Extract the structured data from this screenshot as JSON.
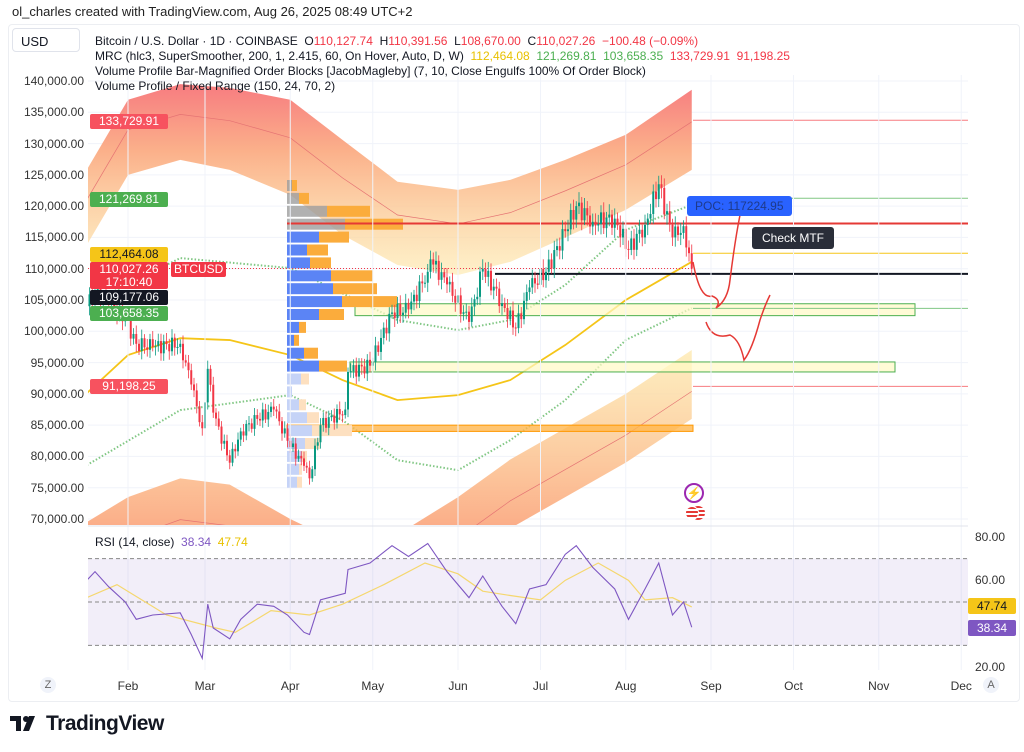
{
  "credit": "ol_charles created with TradingView.com, Aug 26, 2025 08:49 UTC+2",
  "currency": "USD",
  "legend": {
    "symbol": "Bitcoin / U.S. Dollar · 1D · COINBASE",
    "o_label": "O",
    "o": "110,127.74",
    "h_label": "H",
    "h": "110,391.56",
    "l_label": "L",
    "l": "108,670.00",
    "c_label": "C",
    "c": "110,027.26",
    "change": "−100.48 (−0.09%)",
    "mrc": "MRC (hlc3, SuperSmoother, 200, 1, 2.415, 60, On Hover, Auto, D, W)",
    "mrc_values": [
      "112,464.08",
      "121,269.81",
      "103,658.35",
      "133,729.91",
      "91,198.25"
    ],
    "vpob": "Volume Profile Bar-Magnified Order Blocks [JacobMagleby] (7, 10, Close Engulfs 100% Of Order Block)",
    "vpfr": "Volume Profile / Fixed Range (150, 24, 70, 2)",
    "rsi": "RSI (14, close)",
    "rsi_value": "38.34",
    "rsi_ma": "47.74"
  },
  "price_tags": {
    "upper_outer": "133,729.91",
    "upper_inner": "121,269.81",
    "mean": "112,464.08",
    "last": "110,027.26",
    "countdown": "17:10:40",
    "crosshair": "109,177.06",
    "lower_inner": "103,658.35",
    "lower_outer": "91,198.25",
    "symbol_tag": "BTCUSD"
  },
  "annotations": {
    "poc": "POC: 117224.95",
    "note": "Check MTF"
  },
  "rsi_axis": [
    "80.00",
    "60.00",
    "20.00"
  ],
  "rsi_tags": {
    "ma": "47.74",
    "rsi": "38.34"
  },
  "x_axis": [
    "Feb",
    "Mar",
    "Apr",
    "May",
    "Jun",
    "Jul",
    "Aug",
    "Sep",
    "Oct",
    "Nov",
    "Dec"
  ],
  "axis_buttons": {
    "left": "Z",
    "right": "A"
  },
  "brand": "TradingView",
  "colors": {
    "up": "#089981",
    "down": "#f23645",
    "mean": "#f5c518",
    "rsi": "#7e57c2",
    "poc": "#f23645",
    "green": "#4caf50",
    "blue": "#2962ff"
  },
  "chart_data": {
    "type": "candlestick",
    "ylim": [
      70000,
      140000
    ],
    "y_ticks": [
      "140,000.00",
      "135,000.00",
      "130,000.00",
      "125,000.00",
      "120,000.00",
      "115,000.00",
      "110,000.00",
      "105,000.00",
      "100,000.00",
      "95,000.00",
      "90,000.00",
      "85,000.00",
      "80,000.00",
      "75,000.00",
      "70,000.00"
    ],
    "close": [
      [
        "2025-01-17",
        104000
      ],
      [
        "2025-01-20",
        106000
      ],
      [
        "2025-01-25",
        104500
      ],
      [
        "2025-01-31",
        102000
      ],
      [
        "2025-02-04",
        98000
      ],
      [
        "2025-02-10",
        97500
      ],
      [
        "2025-02-20",
        98000
      ],
      [
        "2025-02-24",
        91500
      ],
      [
        "2025-02-28",
        84500
      ],
      [
        "2025-03-02",
        94000
      ],
      [
        "2025-03-04",
        87000
      ],
      [
        "2025-03-10",
        79000
      ],
      [
        "2025-03-14",
        84000
      ],
      [
        "2025-03-20",
        86000
      ],
      [
        "2025-03-26",
        87500
      ],
      [
        "2025-03-31",
        82500
      ],
      [
        "2025-04-06",
        78500
      ],
      [
        "2025-04-08",
        76500
      ],
      [
        "2025-04-12",
        85000
      ],
      [
        "2025-04-21",
        87500
      ],
      [
        "2025-04-22",
        93500
      ],
      [
        "2025-04-30",
        94500
      ],
      [
        "2025-05-08",
        103000
      ],
      [
        "2025-05-14",
        103500
      ],
      [
        "2025-05-21",
        109500
      ],
      [
        "2025-05-22",
        111500
      ],
      [
        "2025-05-28",
        107500
      ],
      [
        "2025-06-05",
        101500
      ],
      [
        "2025-06-10",
        110000
      ],
      [
        "2025-06-17",
        104500
      ],
      [
        "2025-06-22",
        100500
      ],
      [
        "2025-06-27",
        107000
      ],
      [
        "2025-07-03",
        109500
      ],
      [
        "2025-07-10",
        116000
      ],
      [
        "2025-07-14",
        120000
      ],
      [
        "2025-07-20",
        117500
      ],
      [
        "2025-07-28",
        118000
      ],
      [
        "2025-08-02",
        113000
      ],
      [
        "2025-08-08",
        117000
      ],
      [
        "2025-08-13",
        123500
      ],
      [
        "2025-08-18",
        115000
      ],
      [
        "2025-08-22",
        116800
      ],
      [
        "2025-08-25",
        110027.26
      ]
    ],
    "mrc": {
      "dates": [
        "2025-01-17",
        "2025-02-01",
        "2025-02-20",
        "2025-03-10",
        "2025-04-01",
        "2025-04-20",
        "2025-05-10",
        "2025-06-01",
        "2025-06-20",
        "2025-07-10",
        "2025-08-01",
        "2025-08-25"
      ],
      "upper_outer": [
        125800,
        137000,
        139500,
        138900,
        137000,
        130600,
        123900,
        122600,
        124200,
        127400,
        131400,
        138600
      ],
      "upper_inner": [
        113800,
        125000,
        127400,
        125800,
        121800,
        115400,
        110600,
        109000,
        111100,
        115000,
        119400,
        125800
      ],
      "mean": [
        90100,
        96200,
        98900,
        98600,
        96200,
        92200,
        89000,
        89800,
        92200,
        97800,
        105000,
        111100
      ],
      "lower_inner": [
        69500,
        73500,
        76500,
        75500,
        70000,
        66000,
        67500,
        73500,
        79500,
        84500,
        90000,
        97000
      ],
      "lower_outer": [
        58500,
        62500,
        65500,
        64500,
        59000,
        55000,
        56500,
        62500,
        68500,
        73500,
        79000,
        86000
      ]
    },
    "dotted_upper": [
      [
        "2025-01-17",
        104200
      ],
      [
        "2025-02-20",
        111700
      ],
      [
        "2025-04-01",
        110100
      ],
      [
        "2025-05-10",
        101800
      ],
      [
        "2025-06-01",
        100200
      ],
      [
        "2025-06-20",
        101800
      ],
      [
        "2025-07-10",
        107400
      ],
      [
        "2025-08-01",
        116200
      ],
      [
        "2025-08-25",
        120200
      ]
    ],
    "dotted_lower": [
      [
        "2025-01-17",
        78600
      ],
      [
        "2025-02-20",
        87400
      ],
      [
        "2025-04-01",
        89800
      ],
      [
        "2025-04-20",
        85800
      ],
      [
        "2025-05-10",
        79400
      ],
      [
        "2025-06-01",
        77800
      ],
      [
        "2025-06-20",
        82600
      ],
      [
        "2025-07-10",
        89000
      ],
      [
        "2025-08-01",
        98600
      ],
      [
        "2025-08-25",
        103700
      ]
    ],
    "levels": {
      "poc": 117224.95,
      "support_line": 109177.06,
      "upper_outer": 133729.91,
      "upper_inner": 121269.81,
      "mean": 112464.08,
      "lower_inner": 103658.35,
      "lower_outer": 91198.25
    },
    "zones": [
      {
        "from": 102500,
        "to": 104400,
        "color": "#4caf50"
      },
      {
        "from": 93500,
        "to": 95100,
        "color": "#4caf50"
      },
      {
        "from": 84000,
        "to": 85000,
        "color": "#ff9800"
      }
    ],
    "volume_profile": [
      [
        5,
        5
      ],
      [
        12,
        10
      ],
      [
        40,
        43
      ],
      [
        58,
        58
      ],
      [
        32,
        30
      ],
      [
        20,
        21
      ],
      [
        23,
        21
      ],
      [
        44,
        42
      ],
      [
        46,
        44
      ],
      [
        55,
        55
      ],
      [
        32,
        25
      ],
      [
        12,
        7
      ],
      [
        7,
        5
      ],
      [
        17,
        14
      ],
      [
        32,
        28
      ],
      [
        14,
        8
      ],
      [
        5,
        0
      ],
      [
        12,
        7
      ],
      [
        20,
        12
      ],
      [
        25,
        40
      ],
      [
        18,
        15
      ],
      [
        15,
        5
      ],
      [
        12,
        3
      ],
      [
        10,
        5
      ]
    ],
    "rsi": [
      [
        "2025-01-17",
        60
      ],
      [
        "2025-01-20",
        64
      ],
      [
        "2025-01-25",
        57
      ],
      [
        "2025-01-31",
        50
      ],
      [
        "2025-02-04",
        42
      ],
      [
        "2025-02-10",
        44
      ],
      [
        "2025-02-20",
        45
      ],
      [
        "2025-02-24",
        35
      ],
      [
        "2025-02-28",
        24
      ],
      [
        "2025-03-02",
        49
      ],
      [
        "2025-03-04",
        38
      ],
      [
        "2025-03-10",
        33
      ],
      [
        "2025-03-14",
        42
      ],
      [
        "2025-03-20",
        49
      ],
      [
        "2025-03-26",
        48
      ],
      [
        "2025-03-31",
        44
      ],
      [
        "2025-04-06",
        36
      ],
      [
        "2025-04-08",
        35
      ],
      [
        "2025-04-12",
        51
      ],
      [
        "2025-04-21",
        54
      ],
      [
        "2025-04-22",
        65
      ],
      [
        "2025-04-30",
        68
      ],
      [
        "2025-05-08",
        76
      ],
      [
        "2025-05-14",
        71
      ],
      [
        "2025-05-21",
        77
      ],
      [
        "2025-05-28",
        64
      ],
      [
        "2025-06-05",
        52
      ],
      [
        "2025-06-10",
        62
      ],
      [
        "2025-06-17",
        48
      ],
      [
        "2025-06-22",
        40
      ],
      [
        "2025-06-27",
        56
      ],
      [
        "2025-07-03",
        58
      ],
      [
        "2025-07-10",
        72
      ],
      [
        "2025-07-14",
        76
      ],
      [
        "2025-07-20",
        66
      ],
      [
        "2025-07-28",
        56
      ],
      [
        "2025-08-02",
        42
      ],
      [
        "2025-08-08",
        56
      ],
      [
        "2025-08-13",
        68
      ],
      [
        "2025-08-18",
        44
      ],
      [
        "2025-08-22",
        50
      ],
      [
        "2025-08-25",
        38.34
      ]
    ],
    "rsi_ma": [
      [
        "2025-01-17",
        52
      ],
      [
        "2025-01-28",
        58
      ],
      [
        "2025-02-15",
        44
      ],
      [
        "2025-03-05",
        38
      ],
      [
        "2025-03-12",
        36
      ],
      [
        "2025-03-25",
        46
      ],
      [
        "2025-04-08",
        44
      ],
      [
        "2025-04-20",
        49
      ],
      [
        "2025-05-05",
        58
      ],
      [
        "2025-05-20",
        68
      ],
      [
        "2025-06-01",
        63
      ],
      [
        "2025-06-10",
        55
      ],
      [
        "2025-06-20",
        53
      ],
      [
        "2025-07-01",
        51
      ],
      [
        "2025-07-10",
        60
      ],
      [
        "2025-07-22",
        68
      ],
      [
        "2025-08-02",
        60
      ],
      [
        "2025-08-08",
        51
      ],
      [
        "2025-08-18",
        52
      ],
      [
        "2025-08-25",
        47.74
      ]
    ],
    "rsi_levels": [
      70,
      50,
      30
    ],
    "rsi_ylim": [
      20,
      80
    ]
  }
}
